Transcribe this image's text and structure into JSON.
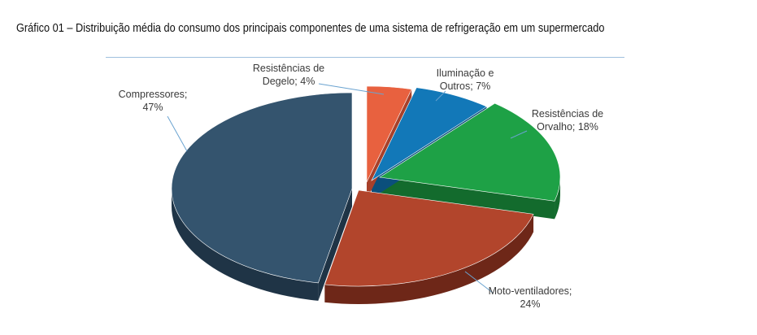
{
  "caption": "Gráfico 01 – Distribuição média do consumo dos principais componentes de uma sistema de refrigeração em um supermercado",
  "chart_data": {
    "type": "pie",
    "title": "",
    "style": "3d-exploded",
    "series": [
      {
        "label_lines": [
          "Resistências de",
          "Degelo; 4%"
        ],
        "value": 4,
        "color": "#e8613f",
        "side": "#a8402a"
      },
      {
        "label_lines": [
          "Iluminação e",
          "Outros; 7%"
        ],
        "value": 7,
        "color": "#1278b8",
        "side": "#0b4f7c"
      },
      {
        "label_lines": [
          "Resistências de",
          "Orvalho; 18%"
        ],
        "value": 18,
        "color": "#1ea146",
        "side": "#136b2d"
      },
      {
        "label_lines": [
          "Moto-ventiladores;",
          "24%"
        ],
        "value": 24,
        "color": "#b2452c",
        "side": "#6e2718"
      },
      {
        "label_lines": [
          "Compressores;",
          "47%"
        ],
        "value": 47,
        "color": "#34546e",
        "side": "#1f3446"
      }
    ]
  }
}
